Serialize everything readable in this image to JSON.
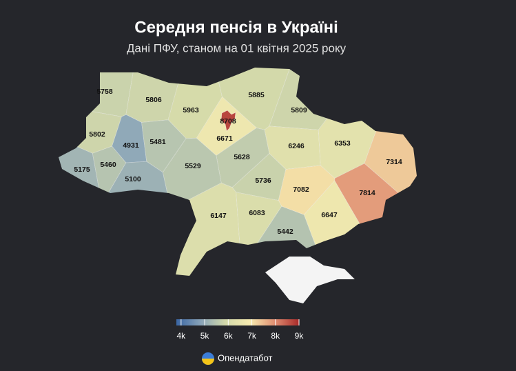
{
  "title": "Середня пенсія в Україні",
  "subtitle": "Дані ПФУ, станом на 01 квітня 2025 року",
  "regions": [
    5758,
    5806,
    5963,
    5885,
    5809,
    8708,
    6671,
    5802,
    4931,
    5481,
    5628,
    6246,
    6353,
    7314,
    5175,
    5460,
    5100,
    5529,
    5736,
    7082,
    7814,
    6147,
    6083,
    6647,
    5442
  ],
  "legend": {
    "range": [
      3800,
      9000
    ],
    "colors": [
      "#3a66a4",
      "#8aa4b9",
      "#d3d9aa",
      "#f7ecb0",
      "#e08f72",
      "#a82a2a"
    ],
    "ticks": [
      {
        "value": 4000,
        "label": "4k"
      },
      {
        "value": 5000,
        "label": "5k"
      },
      {
        "value": 6000,
        "label": "6k"
      },
      {
        "value": 7000,
        "label": "7k"
      },
      {
        "value": 8000,
        "label": "8k"
      },
      {
        "value": 9000,
        "label": "9k"
      }
    ]
  },
  "brand": "Опендатабот"
}
